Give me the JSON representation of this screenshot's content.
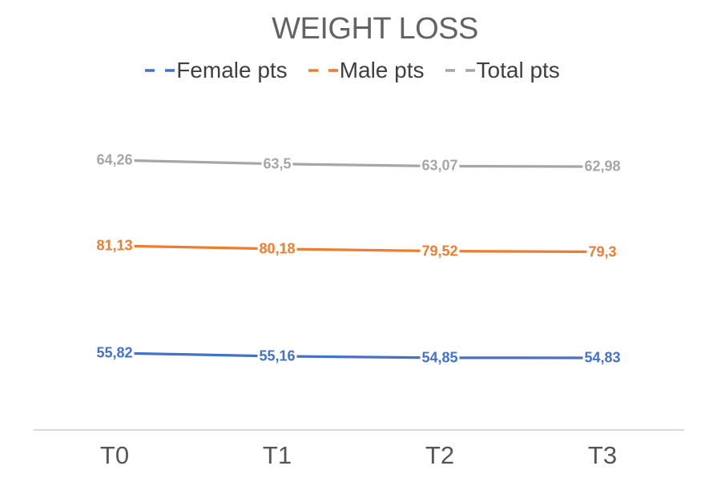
{
  "title": "WEIGHT LOSS",
  "legend": {
    "position": "top",
    "items": [
      {
        "label": "Female pts",
        "color": "#4472C4",
        "marker": "dashed-line"
      },
      {
        "label": "Male pts",
        "color": "#ED7D31",
        "marker": "dashed-line"
      },
      {
        "label": "Total pts",
        "color": "#A6A6A6",
        "marker": "dashed-line"
      }
    ]
  },
  "chart_data": {
    "type": "line",
    "title": "WEIGHT LOSS",
    "categories": [
      "T0",
      "T1",
      "T2",
      "T3"
    ],
    "series": [
      {
        "name": "Female pts",
        "color": "#4472C4",
        "values": [
          55.82,
          55.16,
          54.85,
          54.83
        ],
        "labels": [
          "55,82",
          "55,16",
          "54,85",
          "54,83"
        ]
      },
      {
        "name": "Male pts",
        "color": "#ED7D31",
        "values": [
          81.13,
          80.18,
          79.52,
          79.3
        ],
        "labels": [
          "81,13",
          "80,18",
          "79,52",
          "79,3"
        ]
      },
      {
        "name": "Total pts",
        "color": "#A6A6A6",
        "values": [
          64.26,
          63.5,
          63.07,
          62.98
        ],
        "labels": [
          "64,26",
          "63,5",
          "63,07",
          "62,98"
        ]
      }
    ],
    "xlabel": "",
    "ylabel": "",
    "grid": false,
    "value_axis_visible": false,
    "data_labels": true,
    "decimal_separator": ",",
    "legend_position": "top"
  },
  "colors": {
    "background": "#FFFFFF",
    "title_text": "#636363",
    "legend_text": "#3F3F3F",
    "axis_labels": "#555555",
    "x_axis_line": "#D9D9D9",
    "series_female": "#4472C4",
    "series_male": "#ED7D31",
    "series_total": "#A6A6A6"
  }
}
